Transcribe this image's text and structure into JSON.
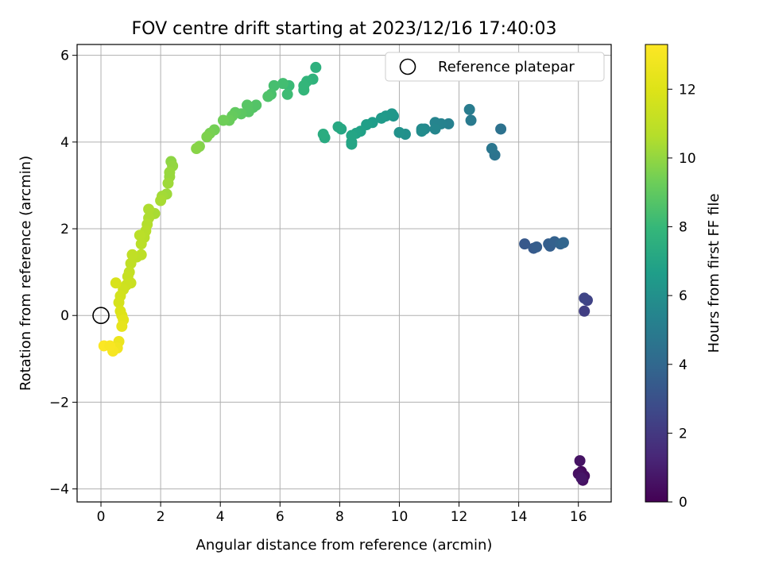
{
  "chart_data": {
    "type": "scatter",
    "title": "FOV centre drift starting at 2023/12/16 17:40:03",
    "xlabel": "Angular distance from reference (arcmin)",
    "ylabel": "Rotation from reference (arcmin)",
    "xlim": [
      -0.8,
      17.1
    ],
    "ylim": [
      -4.3,
      6.25
    ],
    "xticks": [
      0,
      2,
      4,
      6,
      8,
      10,
      12,
      14,
      16
    ],
    "yticks": [
      -4,
      -2,
      0,
      2,
      4,
      6
    ],
    "grid": true,
    "legend": {
      "position": "top-right",
      "entries": [
        "Reference platepar"
      ]
    },
    "colorbar": {
      "label": "Hours from first FF file",
      "min": 0,
      "max": 13.3,
      "ticks": [
        0,
        2,
        4,
        6,
        8,
        10,
        12
      ],
      "colormap": "viridis"
    },
    "reference_point": {
      "x": 0,
      "y": 0
    },
    "points": [
      {
        "x": 16.1,
        "y": -3.6,
        "h": 0.3
      },
      {
        "x": 16.2,
        "y": -3.7,
        "h": 0.4
      },
      {
        "x": 16.0,
        "y": -3.65,
        "h": 0.5
      },
      {
        "x": 16.15,
        "y": -3.8,
        "h": 0.5
      },
      {
        "x": 16.05,
        "y": -3.35,
        "h": 0.6
      },
      {
        "x": 16.1,
        "y": -3.75,
        "h": 0.7
      },
      {
        "x": 16.2,
        "y": 0.1,
        "h": 2.2
      },
      {
        "x": 16.3,
        "y": 0.35,
        "h": 2.4
      },
      {
        "x": 16.2,
        "y": 0.4,
        "h": 2.5
      },
      {
        "x": 14.2,
        "y": 1.65,
        "h": 3.3
      },
      {
        "x": 14.5,
        "y": 1.55,
        "h": 3.4
      },
      {
        "x": 14.6,
        "y": 1.58,
        "h": 3.5
      },
      {
        "x": 15.0,
        "y": 1.65,
        "h": 3.6
      },
      {
        "x": 15.05,
        "y": 1.6,
        "h": 3.6
      },
      {
        "x": 15.2,
        "y": 1.7,
        "h": 3.7
      },
      {
        "x": 15.4,
        "y": 1.65,
        "h": 3.8
      },
      {
        "x": 15.5,
        "y": 1.68,
        "h": 3.9
      },
      {
        "x": 13.4,
        "y": 4.3,
        "h": 4.5
      },
      {
        "x": 13.2,
        "y": 3.7,
        "h": 4.6
      },
      {
        "x": 13.1,
        "y": 3.85,
        "h": 4.7
      },
      {
        "x": 12.4,
        "y": 4.5,
        "h": 4.9
      },
      {
        "x": 12.35,
        "y": 4.75,
        "h": 5.0
      },
      {
        "x": 11.65,
        "y": 4.42,
        "h": 5.2
      },
      {
        "x": 11.4,
        "y": 4.42,
        "h": 5.3
      },
      {
        "x": 11.2,
        "y": 4.45,
        "h": 5.4
      },
      {
        "x": 11.2,
        "y": 4.3,
        "h": 5.5
      },
      {
        "x": 10.85,
        "y": 4.3,
        "h": 5.6
      },
      {
        "x": 10.75,
        "y": 4.3,
        "h": 5.7
      },
      {
        "x": 10.75,
        "y": 4.25,
        "h": 5.8
      },
      {
        "x": 10.2,
        "y": 4.18,
        "h": 6.0
      },
      {
        "x": 10.0,
        "y": 4.22,
        "h": 6.1
      },
      {
        "x": 9.8,
        "y": 4.6,
        "h": 6.2
      },
      {
        "x": 9.75,
        "y": 4.65,
        "h": 6.3
      },
      {
        "x": 9.55,
        "y": 4.6,
        "h": 6.4
      },
      {
        "x": 9.4,
        "y": 4.55,
        "h": 6.5
      },
      {
        "x": 9.1,
        "y": 4.45,
        "h": 6.6
      },
      {
        "x": 8.9,
        "y": 4.4,
        "h": 6.7
      },
      {
        "x": 8.7,
        "y": 4.25,
        "h": 6.8
      },
      {
        "x": 8.55,
        "y": 4.2,
        "h": 6.9
      },
      {
        "x": 8.4,
        "y": 4.0,
        "h": 7.0
      },
      {
        "x": 8.4,
        "y": 4.15,
        "h": 7.0
      },
      {
        "x": 8.4,
        "y": 3.95,
        "h": 7.0
      },
      {
        "x": 8.05,
        "y": 4.3,
        "h": 7.1
      },
      {
        "x": 7.95,
        "y": 4.35,
        "h": 7.2
      },
      {
        "x": 7.5,
        "y": 4.1,
        "h": 7.3
      },
      {
        "x": 7.45,
        "y": 4.18,
        "h": 7.4
      },
      {
        "x": 7.2,
        "y": 5.72,
        "h": 7.6
      },
      {
        "x": 7.1,
        "y": 5.45,
        "h": 7.7
      },
      {
        "x": 6.9,
        "y": 5.4,
        "h": 7.8
      },
      {
        "x": 6.8,
        "y": 5.2,
        "h": 7.9
      },
      {
        "x": 6.8,
        "y": 5.3,
        "h": 7.9
      },
      {
        "x": 6.3,
        "y": 5.3,
        "h": 8.1
      },
      {
        "x": 6.25,
        "y": 5.1,
        "h": 8.2
      },
      {
        "x": 6.1,
        "y": 5.35,
        "h": 8.3
      },
      {
        "x": 5.8,
        "y": 5.3,
        "h": 8.4
      },
      {
        "x": 5.7,
        "y": 5.1,
        "h": 8.5
      },
      {
        "x": 5.6,
        "y": 5.05,
        "h": 8.6
      },
      {
        "x": 5.2,
        "y": 4.85,
        "h": 8.7
      },
      {
        "x": 5.1,
        "y": 4.8,
        "h": 8.7
      },
      {
        "x": 4.9,
        "y": 4.85,
        "h": 8.8
      },
      {
        "x": 4.95,
        "y": 4.7,
        "h": 8.8
      },
      {
        "x": 4.7,
        "y": 4.65,
        "h": 8.9
      },
      {
        "x": 4.5,
        "y": 4.68,
        "h": 9.0
      },
      {
        "x": 4.4,
        "y": 4.6,
        "h": 9.1
      },
      {
        "x": 4.3,
        "y": 4.5,
        "h": 9.2
      },
      {
        "x": 4.1,
        "y": 4.5,
        "h": 9.3
      },
      {
        "x": 3.8,
        "y": 4.28,
        "h": 9.4
      },
      {
        "x": 3.65,
        "y": 4.2,
        "h": 9.5
      },
      {
        "x": 3.55,
        "y": 4.12,
        "h": 9.6
      },
      {
        "x": 3.3,
        "y": 3.9,
        "h": 9.7
      },
      {
        "x": 3.2,
        "y": 3.85,
        "h": 9.8
      },
      {
        "x": 2.35,
        "y": 3.55,
        "h": 9.9
      },
      {
        "x": 2.4,
        "y": 3.45,
        "h": 10.0
      },
      {
        "x": 2.3,
        "y": 3.3,
        "h": 10.1
      },
      {
        "x": 2.3,
        "y": 3.2,
        "h": 10.1
      },
      {
        "x": 2.25,
        "y": 3.05,
        "h": 10.2
      },
      {
        "x": 2.2,
        "y": 2.8,
        "h": 10.2
      },
      {
        "x": 2.05,
        "y": 2.75,
        "h": 10.3
      },
      {
        "x": 2.0,
        "y": 2.65,
        "h": 10.4
      },
      {
        "x": 1.8,
        "y": 2.35,
        "h": 10.4
      },
      {
        "x": 1.6,
        "y": 2.45,
        "h": 10.5
      },
      {
        "x": 1.6,
        "y": 2.25,
        "h": 10.5
      },
      {
        "x": 1.55,
        "y": 2.1,
        "h": 10.6
      },
      {
        "x": 1.5,
        "y": 1.95,
        "h": 10.7
      },
      {
        "x": 1.45,
        "y": 1.8,
        "h": 10.7
      },
      {
        "x": 1.3,
        "y": 1.85,
        "h": 10.8
      },
      {
        "x": 1.35,
        "y": 1.65,
        "h": 10.8
      },
      {
        "x": 1.35,
        "y": 1.4,
        "h": 10.9
      },
      {
        "x": 1.2,
        "y": 1.35,
        "h": 10.9
      },
      {
        "x": 1.05,
        "y": 1.4,
        "h": 11.0
      },
      {
        "x": 1.0,
        "y": 1.2,
        "h": 11.0
      },
      {
        "x": 0.95,
        "y": 1.0,
        "h": 11.1
      },
      {
        "x": 0.9,
        "y": 0.9,
        "h": 11.2
      },
      {
        "x": 1.0,
        "y": 0.75,
        "h": 11.3
      },
      {
        "x": 0.85,
        "y": 0.7,
        "h": 11.4
      },
      {
        "x": 0.75,
        "y": 0.6,
        "h": 11.5
      },
      {
        "x": 0.65,
        "y": 0.45,
        "h": 11.6
      },
      {
        "x": 0.6,
        "y": 0.3,
        "h": 11.7
      },
      {
        "x": 0.5,
        "y": 0.75,
        "h": 11.8
      },
      {
        "x": 0.65,
        "y": 0.1,
        "h": 11.9
      },
      {
        "x": 0.7,
        "y": 0.0,
        "h": 12.0
      },
      {
        "x": 0.75,
        "y": -0.1,
        "h": 12.2
      },
      {
        "x": 0.7,
        "y": -0.25,
        "h": 12.4
      },
      {
        "x": 0.6,
        "y": -0.6,
        "h": 12.6
      },
      {
        "x": 0.55,
        "y": -0.75,
        "h": 12.8
      },
      {
        "x": 0.4,
        "y": -0.82,
        "h": 13.0
      },
      {
        "x": 0.1,
        "y": -0.7,
        "h": 13.2
      },
      {
        "x": 0.3,
        "y": -0.7,
        "h": 13.1
      }
    ]
  }
}
